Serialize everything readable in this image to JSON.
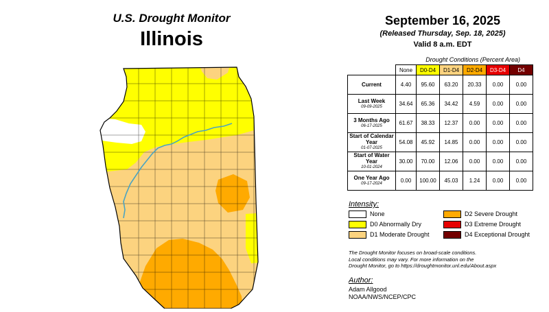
{
  "header": {
    "subtitle": "U.S. Drought Monitor",
    "state": "Illinois"
  },
  "date": {
    "main": "September 16, 2025",
    "released": "(Released Thursday, Sep. 18, 2025)",
    "valid": "Valid 8 a.m. EDT"
  },
  "stats": {
    "caption": "Drought Conditions (Percent Area)",
    "columns": [
      "None",
      "D0-D4",
      "D1-D4",
      "D2-D4",
      "D3-D4",
      "D4"
    ],
    "rows": [
      {
        "label": "Current",
        "date": "",
        "values": [
          "4.40",
          "95.60",
          "63.20",
          "20.33",
          "0.00",
          "0.00"
        ]
      },
      {
        "label": "Last Week",
        "date": "09-09-2025",
        "values": [
          "34.64",
          "65.36",
          "34.42",
          "4.59",
          "0.00",
          "0.00"
        ]
      },
      {
        "label": "3 Months Ago",
        "date": "06-17-2025",
        "values": [
          "61.67",
          "38.33",
          "12.37",
          "0.00",
          "0.00",
          "0.00"
        ]
      },
      {
        "label": "Start of Calendar Year",
        "date": "01-07-2025",
        "values": [
          "54.08",
          "45.92",
          "14.85",
          "0.00",
          "0.00",
          "0.00"
        ]
      },
      {
        "label": "Start of Water Year",
        "date": "10-01-2024",
        "values": [
          "30.00",
          "70.00",
          "12.06",
          "0.00",
          "0.00",
          "0.00"
        ]
      },
      {
        "label": "One Year Ago",
        "date": "09-17-2024",
        "values": [
          "0.00",
          "100.00",
          "45.03",
          "1.24",
          "0.00",
          "0.00"
        ]
      }
    ]
  },
  "legend": {
    "title": "Intensity:",
    "items": [
      {
        "label": "None",
        "color": "#ffffff"
      },
      {
        "label": "D0 Abnormally Dry",
        "color": "#ffff00"
      },
      {
        "label": "D1 Moderate Drought",
        "color": "#fcd37f"
      },
      {
        "label": "D2 Severe Drought",
        "color": "#ffaa00"
      },
      {
        "label": "D3 Extreme Drought",
        "color": "#e60000"
      },
      {
        "label": "D4 Exceptional Drought",
        "color": "#730000"
      }
    ]
  },
  "notes": {
    "line1": "The Drought Monitor focuses on broad-scale conditions.",
    "line2": "Local conditions may vary. For more information on the",
    "line3": "Drought Monitor, go to https://droughtmonitor.unl.edu/About.aspx"
  },
  "author": {
    "title": "Author:",
    "name": "Adam Allgood",
    "org": "NOAA/NWS/NCEP/CPC"
  },
  "map": {
    "colors": {
      "none": "#ffffff",
      "d0": "#ffff00",
      "d1": "#fcd37f",
      "d2": "#ffaa00",
      "river": "#4aa3c2",
      "border": "#000000"
    }
  }
}
